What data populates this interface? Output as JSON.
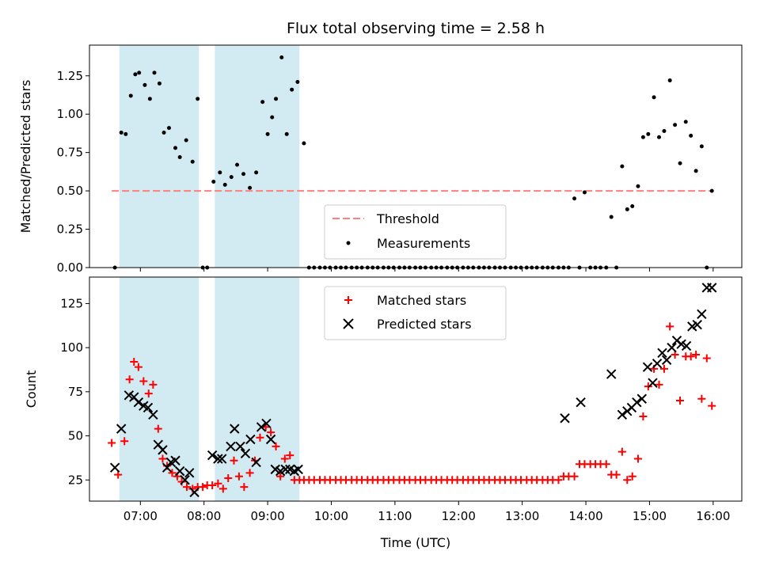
{
  "chart_data": {
    "title": "Flux total observing time = 2.58 h",
    "xlabel": "Time (UTC)",
    "x_unit": "hours (UTC)",
    "xlim": [
      6.2,
      16.45
    ],
    "xticks": [
      7,
      8,
      9,
      10,
      11,
      12,
      13,
      14,
      15,
      16
    ],
    "xtick_labels": [
      "07:00",
      "08:00",
      "09:00",
      "10:00",
      "11:00",
      "12:00",
      "13:00",
      "14:00",
      "15:00",
      "16:00"
    ],
    "shaded_intervals": [
      [
        6.67,
        7.92
      ],
      [
        8.17,
        9.5
      ]
    ],
    "shade_color": "#add8e6",
    "panels": [
      {
        "type": "scatter",
        "ylabel": "Matched/Predicted stars",
        "ylim": [
          0,
          1.45
        ],
        "yticks": [
          0.0,
          0.25,
          0.5,
          0.75,
          1.0,
          1.25
        ],
        "ytick_labels": [
          "0.00",
          "0.25",
          "0.50",
          "0.75",
          "1.00",
          "1.25"
        ],
        "threshold": {
          "name": "Threshold",
          "y": 0.5,
          "color": "#ff7f7f",
          "style": "dashed"
        },
        "legend": [
          "Threshold",
          "Measurements"
        ],
        "series": [
          {
            "name": "Measurements",
            "marker": "dot",
            "color": "#000000",
            "x": [
              6.6,
              6.7,
              6.77,
              6.85,
              6.92,
              6.98,
              7.07,
              7.15,
              7.22,
              7.3,
              7.37,
              7.45,
              7.55,
              7.62,
              7.72,
              7.82,
              7.9,
              7.98,
              8.05,
              8.15,
              8.25,
              8.33,
              8.43,
              8.52,
              8.62,
              8.72,
              8.82,
              8.92,
              9.0,
              9.07,
              9.13,
              9.22,
              9.3,
              9.38,
              9.47,
              9.57,
              9.65,
              9.73,
              9.82,
              9.9,
              9.98,
              10.07,
              10.15,
              10.23,
              10.32,
              10.4,
              10.48,
              10.57,
              10.65,
              10.73,
              10.82,
              10.9,
              10.98,
              11.07,
              11.15,
              11.23,
              11.32,
              11.4,
              11.48,
              11.57,
              11.65,
              11.73,
              11.82,
              11.9,
              11.98,
              12.07,
              12.15,
              12.23,
              12.32,
              12.4,
              12.48,
              12.57,
              12.65,
              12.73,
              12.82,
              12.9,
              12.98,
              13.07,
              13.15,
              13.23,
              13.32,
              13.4,
              13.48,
              13.57,
              13.65,
              13.73,
              13.82,
              13.9,
              13.98,
              14.07,
              14.15,
              14.23,
              14.32,
              14.4,
              14.48,
              14.57,
              14.65,
              14.73,
              14.82,
              14.9,
              14.98,
              15.07,
              15.15,
              15.23,
              15.32,
              15.4,
              15.48,
              15.57,
              15.65,
              15.73,
              15.82,
              15.9,
              15.98
            ],
            "y": [
              0.0,
              0.88,
              0.87,
              1.12,
              1.26,
              1.27,
              1.19,
              1.1,
              1.27,
              1.2,
              0.88,
              0.91,
              0.78,
              0.72,
              0.83,
              0.69,
              1.1,
              0.0,
              0.0,
              0.56,
              0.62,
              0.54,
              0.59,
              0.67,
              0.61,
              0.52,
              0.62,
              1.08,
              0.87,
              0.98,
              1.1,
              1.37,
              0.87,
              1.16,
              1.21,
              0.81,
              0.0,
              0.0,
              0.0,
              0.0,
              0.0,
              0.0,
              0.0,
              0.0,
              0.0,
              0.0,
              0.0,
              0.0,
              0.0,
              0.0,
              0.0,
              0.0,
              0.0,
              0.0,
              0.0,
              0.0,
              0.0,
              0.0,
              0.0,
              0.0,
              0.0,
              0.0,
              0.0,
              0.0,
              0.0,
              0.0,
              0.0,
              0.0,
              0.0,
              0.0,
              0.0,
              0.0,
              0.0,
              0.0,
              0.0,
              0.0,
              0.0,
              0.0,
              0.0,
              0.0,
              0.0,
              0.0,
              0.0,
              0.0,
              0.0,
              0.0,
              0.45,
              0.0,
              0.49,
              0.0,
              0.0,
              0.0,
              0.0,
              0.33,
              0.0,
              0.66,
              0.38,
              0.4,
              0.53,
              0.85,
              0.87,
              1.11,
              0.85,
              0.89,
              1.22,
              0.93,
              0.68,
              0.95,
              0.86,
              0.63,
              0.79,
              0.0,
              0.5
            ]
          }
        ]
      },
      {
        "type": "scatter",
        "ylabel": "Count",
        "ylim": [
          13,
          140
        ],
        "yticks": [
          25,
          50,
          75,
          100,
          125
        ],
        "ytick_labels": [
          "25",
          "50",
          "75",
          "100",
          "125"
        ],
        "legend": [
          "Matched stars",
          "Predicted stars"
        ],
        "series": [
          {
            "name": "Matched stars",
            "marker": "plus",
            "color": "#ff0000",
            "x": [
              6.55,
              6.65,
              6.75,
              6.83,
              6.9,
              6.97,
              7.05,
              7.13,
              7.2,
              7.28,
              7.35,
              7.42,
              7.5,
              7.58,
              7.65,
              7.73,
              7.82,
              7.9,
              7.98,
              8.05,
              8.13,
              8.22,
              8.3,
              8.38,
              8.47,
              8.55,
              8.63,
              8.72,
              8.8,
              8.88,
              8.97,
              9.05,
              9.13,
              9.2,
              9.27,
              9.35,
              9.42,
              9.5,
              9.57,
              9.65,
              9.73,
              9.82,
              9.9,
              9.98,
              10.07,
              10.15,
              10.23,
              10.32,
              10.4,
              10.48,
              10.57,
              10.65,
              10.73,
              10.82,
              10.9,
              10.98,
              11.07,
              11.15,
              11.23,
              11.32,
              11.4,
              11.48,
              11.57,
              11.65,
              11.73,
              11.82,
              11.9,
              11.98,
              12.07,
              12.15,
              12.23,
              12.32,
              12.4,
              12.48,
              12.57,
              12.65,
              12.73,
              12.82,
              12.9,
              12.98,
              13.07,
              13.15,
              13.23,
              13.32,
              13.4,
              13.48,
              13.57,
              13.65,
              13.73,
              13.82,
              13.9,
              13.98,
              14.07,
              14.15,
              14.23,
              14.32,
              14.4,
              14.48,
              14.57,
              14.65,
              14.73,
              14.82,
              14.9,
              14.98,
              15.07,
              15.15,
              15.23,
              15.32,
              15.4,
              15.48,
              15.57,
              15.65,
              15.73,
              15.82,
              15.9,
              15.98
            ],
            "y": [
              46,
              28,
              47,
              82,
              92,
              89,
              81,
              74,
              79,
              54,
              37,
              33,
              29,
              27,
              24,
              21,
              20,
              21,
              21,
              22,
              22,
              23,
              20,
              26,
              36,
              27,
              21,
              29,
              36,
              49,
              55,
              52,
              44,
              27,
              37,
              39,
              25,
              25,
              25,
              25,
              25,
              25,
              25,
              25,
              25,
              25,
              25,
              25,
              25,
              25,
              25,
              25,
              25,
              25,
              25,
              25,
              25,
              25,
              25,
              25,
              25,
              25,
              25,
              25,
              25,
              25,
              25,
              25,
              25,
              25,
              25,
              25,
              25,
              25,
              25,
              25,
              25,
              25,
              25,
              25,
              25,
              25,
              25,
              25,
              25,
              25,
              25,
              27,
              27,
              27,
              34,
              34,
              34,
              34,
              34,
              34,
              28,
              28,
              41,
              25,
              27,
              37,
              61,
              78,
              88,
              79,
              88,
              112,
              96,
              70,
              95,
              95,
              96,
              71,
              94,
              67
            ]
          },
          {
            "name": "Predicted stars",
            "marker": "x",
            "color": "#000000",
            "x": [
              6.6,
              6.7,
              6.82,
              6.9,
              6.97,
              7.05,
              7.12,
              7.2,
              7.28,
              7.35,
              7.42,
              7.48,
              7.55,
              7.62,
              7.7,
              7.77,
              7.85,
              8.13,
              8.22,
              8.28,
              8.42,
              8.48,
              8.57,
              8.65,
              8.73,
              8.82,
              8.9,
              8.98,
              9.05,
              9.12,
              9.2,
              9.28,
              9.35,
              9.42,
              9.48,
              13.67,
              13.92,
              14.4,
              14.57,
              14.65,
              14.72,
              14.8,
              14.88,
              14.97,
              15.05,
              15.12,
              15.2,
              15.27,
              15.35,
              15.43,
              15.5,
              15.58,
              15.67,
              15.75,
              15.82,
              15.9,
              15.98
            ],
            "y": [
              32,
              54,
              73,
              72,
              69,
              67,
              66,
              62,
              45,
              42,
              32,
              35,
              36,
              30,
              25,
              29,
              18,
              39,
              37,
              37,
              44,
              54,
              44,
              40,
              48,
              35,
              55,
              57,
              48,
              31,
              30,
              31,
              31,
              30,
              31,
              60,
              69,
              85,
              62,
              64,
              66,
              69,
              71,
              89,
              80,
              91,
              97,
              93,
              100,
              104,
              102,
              101,
              112,
              113,
              119,
              134,
              134
            ]
          }
        ]
      }
    ]
  }
}
